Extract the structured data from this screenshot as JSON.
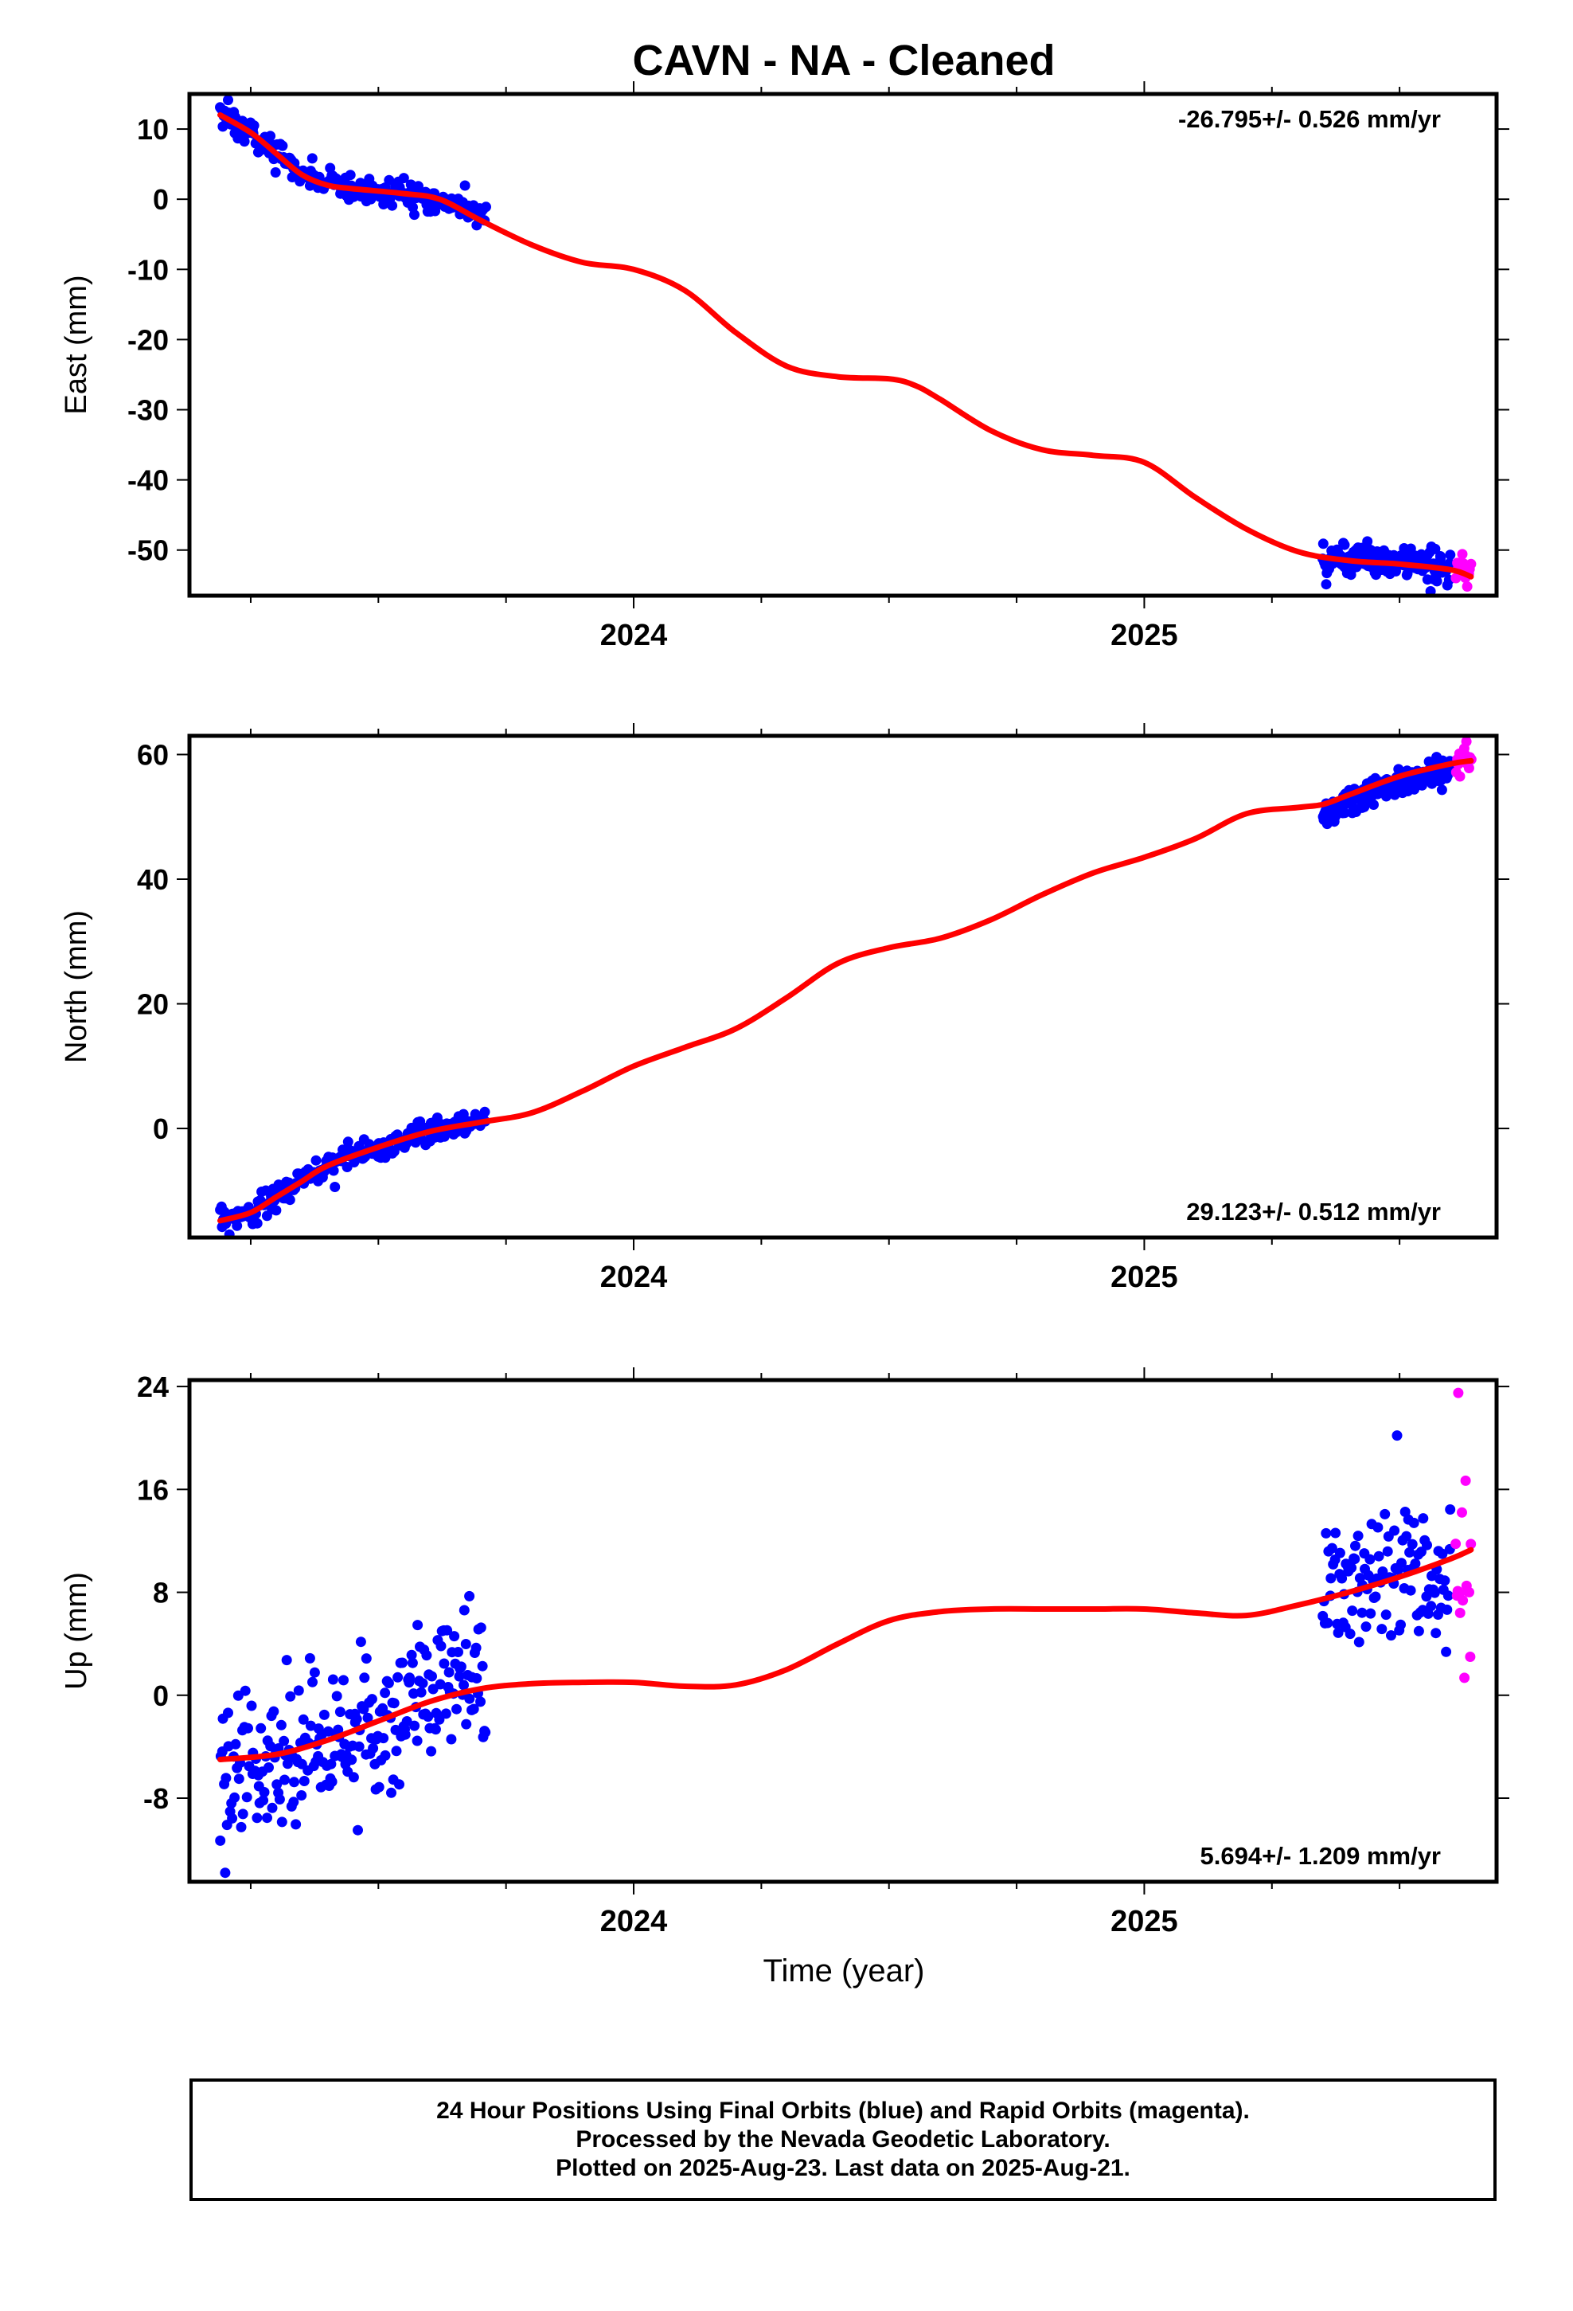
{
  "title": "CAVN  - NA - Cleaned",
  "xlabel": "Time (year)",
  "colors": {
    "final": "#0000ff",
    "rapid": "#ff00ff",
    "model": "#ff0000",
    "axis": "#000000"
  },
  "footer": {
    "line1": "24 Hour Positions Using Final Orbits (blue) and Rapid Orbits (magenta).",
    "line2": "Processed by the Nevada Geodetic Laboratory.",
    "line3": "Plotted on 2025-Aug-23. Last data on 2025-Aug-21."
  },
  "chart_data": [
    {
      "type": "scatter",
      "ylabel": "East (mm)",
      "rate_text": "-26.795+/- 0.526 mm/yr",
      "rate_position": "top-right",
      "xlim": [
        2023.13,
        2025.69
      ],
      "ylim": [
        -56.5,
        15
      ],
      "yticks": [
        10,
        0,
        -10,
        -20,
        -30,
        -40,
        -50
      ],
      "xticks": [
        2024,
        2025
      ],
      "grid": false,
      "model": {
        "x": [
          2023.19,
          2023.25,
          2023.3,
          2023.35,
          2023.4,
          2023.45,
          2023.55,
          2023.62,
          2023.7,
          2023.8,
          2023.9,
          2024.0,
          2024.1,
          2024.2,
          2024.3,
          2024.4,
          2024.5,
          2024.55,
          2024.6,
          2024.7,
          2024.8,
          2024.9,
          2025.0,
          2025.1,
          2025.2,
          2025.3,
          2025.4,
          2025.5,
          2025.6,
          2025.64
        ],
        "y": [
          12,
          9.5,
          6.5,
          3.5,
          2,
          1.5,
          0.8,
          0,
          -3,
          -6.5,
          -9,
          -10,
          -13,
          -19,
          -23.8,
          -25.3,
          -25.6,
          -26.5,
          -28.5,
          -33,
          -35.7,
          -36.5,
          -37.5,
          -42.5,
          -47,
          -50.2,
          -51.5,
          -52,
          -52.8,
          -53.8
        ]
      },
      "segments": [
        {
          "orbit": "final",
          "x_start": 2023.19,
          "x_end": 2023.71,
          "count": 240,
          "trend": [
            [
              2023.19,
              12
            ],
            [
              2023.25,
              9.5
            ],
            [
              2023.3,
              6.5
            ],
            [
              2023.35,
              3.5
            ],
            [
              2023.4,
              2
            ],
            [
              2023.45,
              1.5
            ],
            [
              2023.55,
              0.8
            ],
            [
              2023.62,
              0
            ],
            [
              2023.71,
              -2.7
            ]
          ],
          "scatter_mm": 1.0
        },
        {
          "orbit": "final",
          "x_start": 2025.35,
          "x_end": 2025.6,
          "count": 170,
          "trend": [
            [
              2025.35,
              -51.2
            ],
            [
              2025.45,
              -51.5
            ],
            [
              2025.55,
              -52.3
            ],
            [
              2025.6,
              -52.6
            ]
          ],
          "scatter_mm": 1.2
        },
        {
          "orbit": "rapid",
          "x_start": 2025.61,
          "x_end": 2025.64,
          "count": 14,
          "trend": [
            [
              2025.61,
              -52
            ],
            [
              2025.64,
              -53
            ]
          ],
          "scatter_mm": 1.1
        }
      ]
    },
    {
      "type": "scatter",
      "ylabel": "North (mm)",
      "rate_text": "29.123+/- 0.512 mm/yr",
      "rate_position": "bottom-right",
      "xlim": [
        2023.13,
        2025.69
      ],
      "ylim": [
        -17.5,
        63
      ],
      "yticks": [
        60,
        40,
        20,
        0
      ],
      "xticks": [
        2024,
        2025
      ],
      "grid": false,
      "model": {
        "x": [
          2023.19,
          2023.25,
          2023.3,
          2023.35,
          2023.4,
          2023.5,
          2023.6,
          2023.7,
          2023.8,
          2023.9,
          2024.0,
          2024.1,
          2024.2,
          2024.3,
          2024.4,
          2024.5,
          2024.6,
          2024.7,
          2024.8,
          2024.9,
          2025.0,
          2025.1,
          2025.2,
          2025.3,
          2025.35,
          2025.4,
          2025.5,
          2025.6,
          2025.64
        ],
        "y": [
          -14.8,
          -13.5,
          -11,
          -8.5,
          -6,
          -3,
          -0.5,
          1,
          2.5,
          6,
          10,
          13,
          16,
          21,
          26.5,
          29,
          30.5,
          33.5,
          37.5,
          41,
          43.5,
          46.5,
          50.5,
          51.5,
          52,
          53.5,
          56.5,
          58.5,
          59
        ]
      },
      "segments": [
        {
          "orbit": "final",
          "x_start": 2023.19,
          "x_end": 2023.71,
          "count": 240,
          "trend": [
            [
              2023.19,
              -14.8
            ],
            [
              2023.25,
              -13.5
            ],
            [
              2023.3,
              -11
            ],
            [
              2023.35,
              -8.5
            ],
            [
              2023.4,
              -6
            ],
            [
              2023.5,
              -3
            ],
            [
              2023.6,
              -0.5
            ],
            [
              2023.71,
              1
            ]
          ],
          "scatter_mm": 1.0
        },
        {
          "orbit": "final",
          "x_start": 2025.35,
          "x_end": 2025.6,
          "count": 170,
          "trend": [
            [
              2025.35,
              50
            ],
            [
              2025.4,
              52.5
            ],
            [
              2025.5,
              55.5
            ],
            [
              2025.6,
              57.5
            ]
          ],
          "scatter_mm": 1.2
        },
        {
          "orbit": "rapid",
          "x_start": 2025.61,
          "x_end": 2025.64,
          "count": 14,
          "trend": [
            [
              2025.61,
              59
            ],
            [
              2025.64,
              59.2
            ]
          ],
          "scatter_mm": 1.3
        }
      ]
    },
    {
      "type": "scatter",
      "ylabel": "Up (mm)",
      "rate_text": "5.694+/- 1.209 mm/yr",
      "rate_position": "bottom-right",
      "xlim": [
        2023.13,
        2025.69
      ],
      "ylim": [
        -14.5,
        24.5
      ],
      "yticks": [
        24,
        16,
        8,
        0,
        -8
      ],
      "xticks": [
        2024,
        2025
      ],
      "grid": false,
      "model": {
        "x": [
          2023.19,
          2023.3,
          2023.4,
          2023.5,
          2023.6,
          2023.7,
          2023.8,
          2023.9,
          2024.0,
          2024.1,
          2024.2,
          2024.3,
          2024.4,
          2024.5,
          2024.6,
          2024.7,
          2024.8,
          2024.9,
          2025.0,
          2025.1,
          2025.2,
          2025.3,
          2025.4,
          2025.5,
          2025.6,
          2025.64
        ],
        "y": [
          -5,
          -4.6,
          -3.5,
          -2,
          -0.5,
          0.5,
          0.9,
          1.0,
          1.0,
          0.7,
          0.8,
          2.0,
          4.0,
          5.8,
          6.5,
          6.7,
          6.7,
          6.7,
          6.7,
          6.4,
          6.2,
          7.0,
          8.0,
          9.2,
          10.6,
          11.3
        ]
      },
      "segments": [
        {
          "orbit": "final",
          "x_start": 2023.19,
          "x_end": 2023.71,
          "count": 240,
          "trend": [
            [
              2023.19,
              -5
            ],
            [
              2023.3,
              -5.2
            ],
            [
              2023.4,
              -4
            ],
            [
              2023.5,
              -2
            ],
            [
              2023.6,
              0.5
            ],
            [
              2023.71,
              2.5
            ]
          ],
          "scatter_mm": 3.0
        },
        {
          "orbit": "final",
          "x_start": 2025.35,
          "x_end": 2025.6,
          "count": 110,
          "trend": [
            [
              2025.35,
              8
            ],
            [
              2025.45,
              10
            ],
            [
              2025.55,
              9.5
            ],
            [
              2025.6,
              8.5
            ]
          ],
          "scatter_mm": 2.8
        },
        {
          "orbit": "rapid",
          "x_start": 2025.61,
          "x_end": 2025.64,
          "count": 14,
          "trend": [
            [
              2025.61,
              9
            ],
            [
              2025.64,
              9
            ]
          ],
          "scatter_mm": 4.0
        }
      ],
      "outliers": [
        {
          "orbit": "rapid",
          "x": 2025.615,
          "y": 23.5
        },
        {
          "orbit": "final",
          "x": 2023.2,
          "y": -13.8
        }
      ]
    }
  ]
}
